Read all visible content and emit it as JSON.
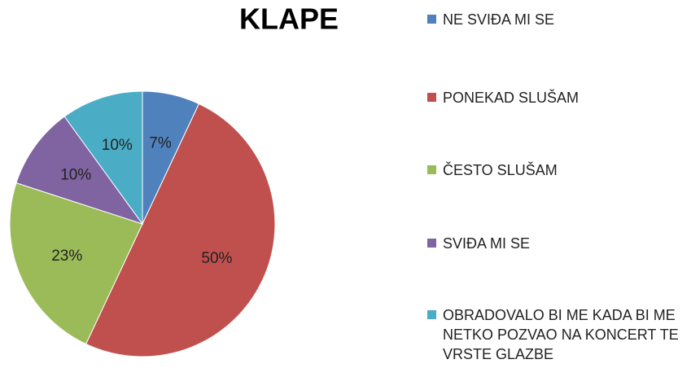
{
  "chart_data": {
    "type": "pie",
    "title": "KLAPE",
    "categories": [
      "NE SVIĐA MI SE",
      "PONEKAD SLUŠAM",
      "ČESTO SLUŠAM",
      "SVIĐA MI SE",
      "OBRADOVALO BI ME KADA BI ME NETKO POZVAO NA KONCERT TE VRSTE GLAZBE"
    ],
    "values": [
      7,
      50,
      23,
      10,
      10
    ],
    "value_labels": [
      "7%",
      "50%",
      "23%",
      "10%",
      "10%"
    ],
    "colors": [
      "#4f81bd",
      "#c0504d",
      "#9bbb59",
      "#8064a2",
      "#4bacc6"
    ],
    "legend": "right"
  }
}
